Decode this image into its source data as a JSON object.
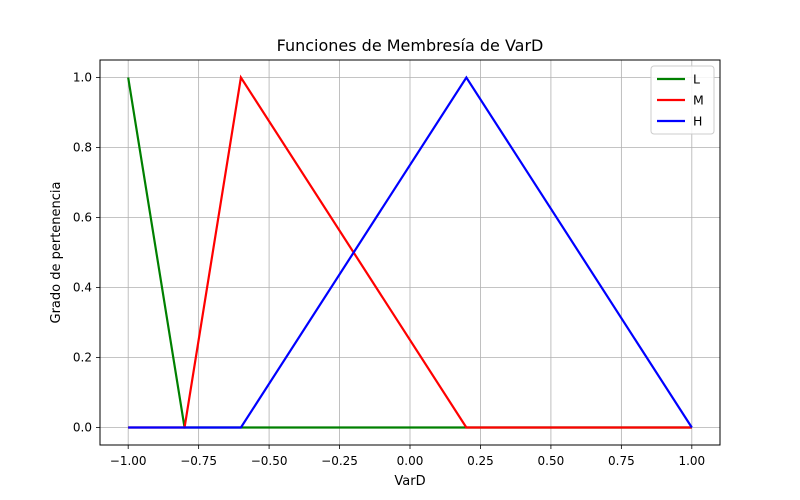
{
  "chart_data": {
    "type": "line",
    "title": "Funciones de Membresía de VarD",
    "xlabel": "VarD",
    "ylabel": "Grado de pertenencia",
    "xlim": [
      -1.1,
      1.1
    ],
    "ylim": [
      -0.05,
      1.05
    ],
    "xticks": [
      -1.0,
      -0.75,
      -0.5,
      -0.25,
      0.0,
      0.25,
      0.5,
      0.75,
      1.0
    ],
    "xtick_labels": [
      "−1.00",
      "−0.75",
      "−0.50",
      "−0.25",
      "0.00",
      "0.25",
      "0.50",
      "0.75",
      "1.00"
    ],
    "yticks": [
      0.0,
      0.2,
      0.4,
      0.6,
      0.8,
      1.0
    ],
    "ytick_labels": [
      "0.0",
      "0.2",
      "0.4",
      "0.6",
      "0.8",
      "1.0"
    ],
    "grid": true,
    "legend_position": "top-right",
    "series": [
      {
        "name": "L",
        "color": "#008000",
        "x": [
          -1.0,
          -0.8,
          1.0
        ],
        "y": [
          1.0,
          0.0,
          0.0
        ]
      },
      {
        "name": "M",
        "color": "#ff0000",
        "x": [
          -1.0,
          -0.8,
          -0.6,
          0.2,
          1.0
        ],
        "y": [
          0.0,
          0.0,
          1.0,
          0.0,
          0.0
        ]
      },
      {
        "name": "H",
        "color": "#0000ff",
        "x": [
          -1.0,
          -0.6,
          0.2,
          1.0
        ],
        "y": [
          0.0,
          0.0,
          1.0,
          0.0
        ]
      }
    ]
  }
}
